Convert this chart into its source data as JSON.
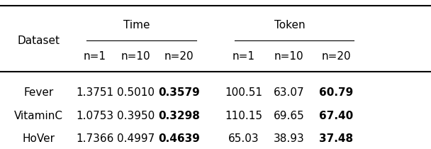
{
  "col_groups": [
    {
      "label": "Time",
      "cols": [
        "n=1",
        "n=10",
        "n=20"
      ]
    },
    {
      "label": "Token",
      "cols": [
        "n=1",
        "n=10",
        "n=20"
      ]
    }
  ],
  "row_label": "Dataset",
  "rows": [
    {
      "name": "Fever",
      "time": [
        "1.3751",
        "0.5010",
        "0.3579"
      ],
      "token": [
        "100.51",
        "63.07",
        "60.79"
      ],
      "time_bold": [
        false,
        false,
        true
      ],
      "token_bold": [
        false,
        false,
        true
      ]
    },
    {
      "name": "VitaminC",
      "time": [
        "1.0753",
        "0.3950",
        "0.3298"
      ],
      "token": [
        "110.15",
        "69.65",
        "67.40"
      ],
      "time_bold": [
        false,
        false,
        true
      ],
      "token_bold": [
        false,
        false,
        true
      ]
    },
    {
      "name": "HoVer",
      "time": [
        "1.7366",
        "0.4997",
        "0.4639"
      ],
      "token": [
        "65.03",
        "38.93",
        "37.48"
      ],
      "time_bold": [
        false,
        false,
        true
      ],
      "token_bold": [
        false,
        false,
        true
      ]
    }
  ],
  "bg_color": "#ffffff",
  "font_size": 11
}
